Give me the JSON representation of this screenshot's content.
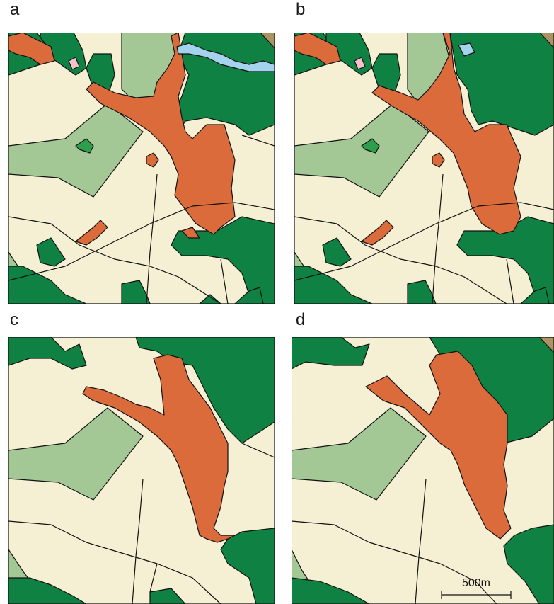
{
  "panels": [
    {
      "label": "a"
    },
    {
      "label": "b"
    },
    {
      "label": "c"
    },
    {
      "label": "d"
    }
  ],
  "scale_bar": {
    "label": "500m"
  },
  "colors": {
    "urban": "#dc6b3b",
    "forest": "#0f8243",
    "agriculture": "#f5efd4",
    "grassland": "#a3c896",
    "water": "#a4d3ee",
    "pink": "#f2c1c9",
    "bright_green": "#2d9e4c",
    "brown": "#ab9464",
    "outline": "#111111"
  }
}
